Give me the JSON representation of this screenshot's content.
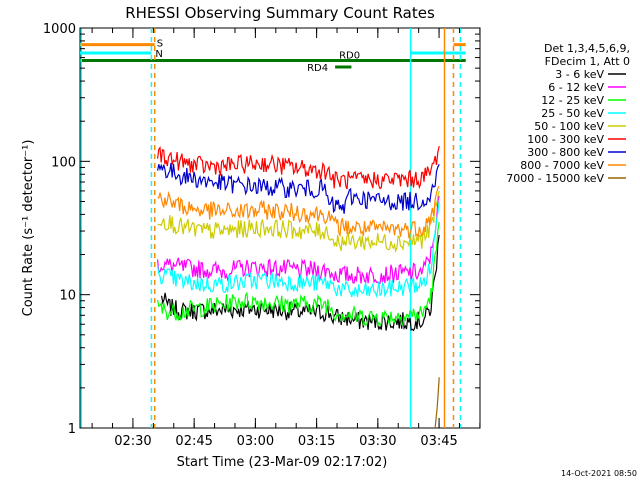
{
  "chart_data": {
    "type": "line",
    "title": "RHESSI Observing Summary Count Rates",
    "xlabel": "Start Time (23-Mar-09 02:17:02)",
    "ylabel": "Count Rate (s⁻¹ detector⁻¹)",
    "yscale": "log",
    "ylim": [
      1,
      1000
    ],
    "xlim_minutes_after_start": [
      0,
      98
    ],
    "x_tick_labels": [
      "02:30",
      "02:45",
      "03:00",
      "03:15",
      "03:30",
      "03:45"
    ],
    "x_tick_minutes": [
      12.97,
      27.97,
      42.97,
      57.97,
      72.97,
      87.97
    ],
    "y_tick_labels": [
      "1",
      "10",
      "100",
      "1000"
    ],
    "y_tick_values": [
      1,
      10,
      100,
      1000
    ],
    "legend_header": [
      "Det 1,3,4,5,6,9,",
      "FDecim 1, Att 0"
    ],
    "legend_position": "right",
    "series": [
      {
        "name": "3 - 6 keV",
        "color": "#000000",
        "values": [
          [
            20,
            9.5
          ],
          [
            22,
            8.0
          ],
          [
            25,
            7.5
          ],
          [
            30,
            7.6
          ],
          [
            35,
            7.7
          ],
          [
            40,
            7.8
          ],
          [
            45,
            7.8
          ],
          [
            50,
            7.6
          ],
          [
            55,
            7.4
          ],
          [
            61,
            7.3
          ],
          [
            62,
            6.8
          ],
          [
            66,
            6.6
          ],
          [
            67,
            6.4
          ],
          [
            70,
            6.3
          ],
          [
            75,
            6.3
          ],
          [
            80,
            6.3
          ],
          [
            84,
            6.4
          ],
          [
            86,
            8
          ],
          [
            87,
            14
          ],
          [
            88,
            28
          ]
        ]
      },
      {
        "name": "6 - 12 keV",
        "color": "#ff00ff",
        "values": [
          [
            19,
            17.0
          ],
          [
            25,
            16.0
          ],
          [
            30,
            15.5
          ],
          [
            35,
            15.0
          ],
          [
            40,
            15.8
          ],
          [
            45,
            16.0
          ],
          [
            50,
            15.6
          ],
          [
            55,
            15.3
          ],
          [
            61,
            15.2
          ],
          [
            62,
            14.2
          ],
          [
            66,
            14.0
          ],
          [
            70,
            14.0
          ],
          [
            75,
            14.2
          ],
          [
            80,
            14.5
          ],
          [
            84,
            14.8
          ],
          [
            86,
            20
          ],
          [
            87,
            32
          ],
          [
            88,
            55
          ]
        ]
      },
      {
        "name": "12 - 25 keV",
        "color": "#00ff00",
        "values": [
          [
            19,
            8.0
          ],
          [
            22,
            7.5
          ],
          [
            25,
            7.5
          ],
          [
            30,
            8.0
          ],
          [
            35,
            8.5
          ],
          [
            40,
            9.0
          ],
          [
            45,
            8.8
          ],
          [
            50,
            8.5
          ],
          [
            55,
            8.5
          ],
          [
            61,
            8.5
          ],
          [
            62,
            7.5
          ],
          [
            66,
            7.0
          ],
          [
            70,
            6.8
          ],
          [
            75,
            6.8
          ],
          [
            80,
            7.0
          ],
          [
            84,
            7.2
          ],
          [
            86,
            10
          ],
          [
            87,
            18
          ],
          [
            88,
            35
          ]
        ]
      },
      {
        "name": "25 - 50 keV",
        "color": "#00ffff",
        "values": [
          [
            19,
            14.5
          ],
          [
            25,
            12.5
          ],
          [
            30,
            12.0
          ],
          [
            35,
            12.0
          ],
          [
            40,
            12.5
          ],
          [
            45,
            13.0
          ],
          [
            50,
            12.5
          ],
          [
            55,
            12.3
          ],
          [
            61,
            12.2
          ],
          [
            62,
            11.5
          ],
          [
            66,
            10.5
          ],
          [
            70,
            10.5
          ],
          [
            75,
            11.0
          ],
          [
            80,
            11.5
          ],
          [
            84,
            12.0
          ],
          [
            86,
            16
          ],
          [
            87,
            28
          ],
          [
            88,
            50
          ]
        ]
      },
      {
        "name": "50 - 100 keV",
        "color": "#cccc00",
        "values": [
          [
            19,
            38
          ],
          [
            25,
            32
          ],
          [
            30,
            30
          ],
          [
            35,
            30
          ],
          [
            40,
            31
          ],
          [
            45,
            32
          ],
          [
            50,
            31
          ],
          [
            55,
            30
          ],
          [
            61,
            30
          ],
          [
            62,
            25
          ],
          [
            66,
            25
          ],
          [
            70,
            25
          ],
          [
            75,
            25
          ],
          [
            80,
            25
          ],
          [
            84,
            26
          ],
          [
            86,
            32
          ],
          [
            87,
            42
          ],
          [
            88,
            60
          ]
        ]
      },
      {
        "name": "100 - 300 keV",
        "color": "#ff0000",
        "values": [
          [
            19,
            115
          ],
          [
            22,
            105
          ],
          [
            25,
            98
          ],
          [
            30,
            92
          ],
          [
            35,
            92
          ],
          [
            40,
            95
          ],
          [
            45,
            97
          ],
          [
            50,
            92
          ],
          [
            55,
            88
          ],
          [
            61,
            85
          ],
          [
            62,
            72
          ],
          [
            66,
            72
          ],
          [
            70,
            72
          ],
          [
            75,
            73
          ],
          [
            80,
            73
          ],
          [
            84,
            75
          ],
          [
            86,
            85
          ],
          [
            87,
            100
          ],
          [
            88,
            130
          ]
        ]
      },
      {
        "name": "300 - 800 keV",
        "color": "#0000cc",
        "values": [
          [
            19,
            92
          ],
          [
            22,
            84
          ],
          [
            25,
            78
          ],
          [
            30,
            72
          ],
          [
            35,
            68
          ],
          [
            40,
            66
          ],
          [
            45,
            64
          ],
          [
            50,
            63
          ],
          [
            55,
            62
          ],
          [
            60,
            62
          ],
          [
            61,
            47
          ],
          [
            65,
            45
          ],
          [
            66,
            55
          ],
          [
            70,
            52
          ],
          [
            75,
            50
          ],
          [
            80,
            50
          ],
          [
            84,
            51
          ],
          [
            86,
            58
          ],
          [
            87,
            70
          ],
          [
            88,
            95
          ]
        ]
      },
      {
        "name": "800 - 7000 keV",
        "color": "#ff8800",
        "values": [
          [
            19,
            55
          ],
          [
            22,
            50
          ],
          [
            25,
            46
          ],
          [
            30,
            43
          ],
          [
            35,
            42
          ],
          [
            40,
            42
          ],
          [
            45,
            43
          ],
          [
            50,
            42
          ],
          [
            55,
            41
          ],
          [
            61,
            40
          ],
          [
            62,
            33
          ],
          [
            66,
            32
          ],
          [
            70,
            31
          ],
          [
            75,
            31
          ],
          [
            80,
            31
          ],
          [
            84,
            32
          ],
          [
            86,
            38
          ],
          [
            87,
            48
          ],
          [
            88,
            65
          ]
        ]
      },
      {
        "name": "7000 - 15000 keV",
        "color": "#996600",
        "values": [
          [
            87,
            1.0
          ],
          [
            87.5,
            1.4
          ],
          [
            88,
            2.4
          ]
        ]
      }
    ],
    "status_bars": [
      {
        "label": "S",
        "color": "#ff8800",
        "level": 750,
        "ranges": [
          [
            0,
            18.3
          ],
          [
            91.5,
            94.5
          ]
        ]
      },
      {
        "label": "N",
        "color": "#00ffff",
        "level": 650,
        "ranges": [
          [
            0,
            17.5
          ],
          [
            81,
            94.5
          ]
        ]
      },
      {
        "label": "",
        "color": "#007700",
        "level": 570,
        "ranges": [
          [
            0,
            94.5
          ]
        ]
      },
      {
        "label": "RD4",
        "color": "#007700",
        "level": 510,
        "ranges": [
          [
            62.5,
            66.5
          ]
        ]
      },
      {
        "label": "RD0",
        "color": "#007700",
        "level": 570,
        "ranges": [
          [
            62.5,
            66.5
          ]
        ]
      }
    ],
    "vertical_lines": [
      {
        "minute": 0.3,
        "color": "#00ffff",
        "style": "solid"
      },
      {
        "minute": 17.5,
        "color": "#00ffff",
        "style": "dashed"
      },
      {
        "minute": 18.3,
        "color": "#ff8800",
        "style": "dashed"
      },
      {
        "minute": 81,
        "color": "#00ffff",
        "style": "solid"
      },
      {
        "minute": 89.3,
        "color": "#ff8800",
        "style": "solid"
      },
      {
        "minute": 91.5,
        "color": "#ff8800",
        "style": "dashed"
      },
      {
        "minute": 93.2,
        "color": "#00ffff",
        "style": "dashed"
      }
    ]
  },
  "footer_timestamp": "14-Oct-2021 08:50"
}
